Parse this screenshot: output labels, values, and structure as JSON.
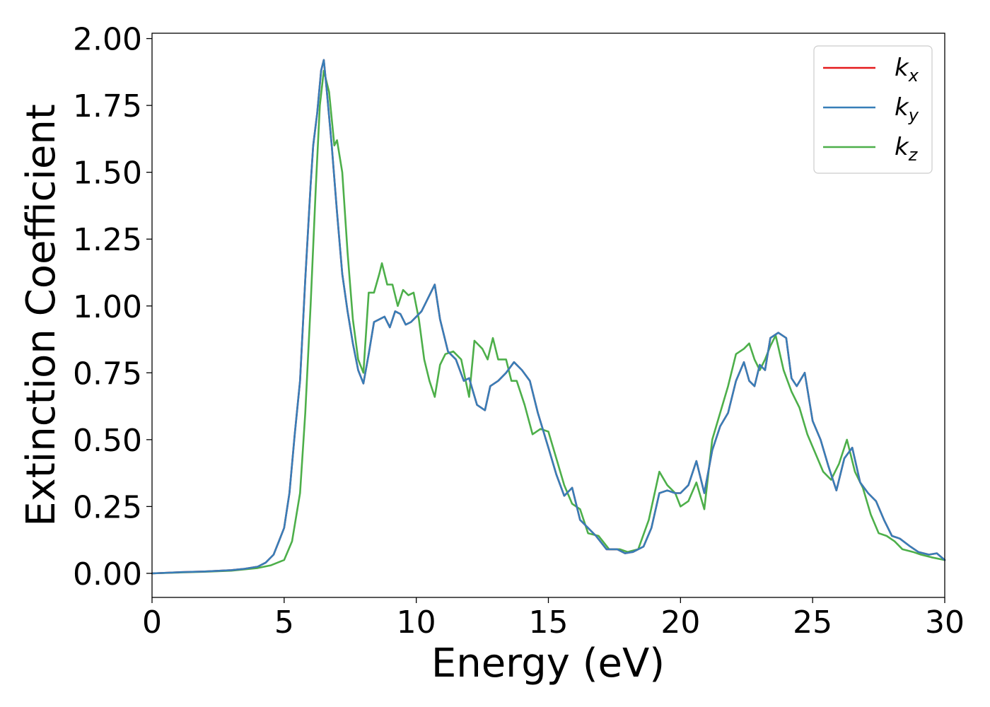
{
  "chart_data": {
    "type": "line",
    "title": "",
    "xlabel": "Energy (eV)",
    "ylabel": "Extinction Coefficient",
    "xlim": [
      0,
      30
    ],
    "ylim": [
      -0.09,
      2.02
    ],
    "xticks": [
      0,
      5,
      10,
      15,
      20,
      25,
      30
    ],
    "xtick_labels": [
      "0",
      "5",
      "10",
      "15",
      "20",
      "25",
      "30"
    ],
    "yticks": [
      0.0,
      0.25,
      0.5,
      0.75,
      1.0,
      1.25,
      1.5,
      1.75,
      2.0
    ],
    "ytick_labels": [
      "0.00",
      "0.25",
      "0.50",
      "0.75",
      "1.00",
      "1.25",
      "1.50",
      "1.75",
      "2.00"
    ],
    "grid": false,
    "legend_position": "top-right",
    "series": [
      {
        "name": "k",
        "subscript": "x",
        "color": "#e41a1c",
        "x": [
          0,
          1,
          2,
          3,
          3.5,
          4,
          4.3,
          4.6,
          4.8,
          5.0,
          5.2,
          5.4,
          5.6,
          5.8,
          6.0,
          6.1,
          6.25,
          6.4,
          6.5,
          6.6,
          6.8,
          7.0,
          7.2,
          7.4,
          7.6,
          7.8,
          8.0,
          8.2,
          8.4,
          8.6,
          8.8,
          9.0,
          9.2,
          9.4,
          9.6,
          9.8,
          10.0,
          10.2,
          10.4,
          10.7,
          10.9,
          11.2,
          11.5,
          11.8,
          12.0,
          12.3,
          12.6,
          12.8,
          13.1,
          13.4,
          13.7,
          14.0,
          14.3,
          14.6,
          15.0,
          15.3,
          15.6,
          15.9,
          16.2,
          16.5,
          16.8,
          17.2,
          17.6,
          17.9,
          18.2,
          18.6,
          18.9,
          19.2,
          19.5,
          19.8,
          20.0,
          20.3,
          20.6,
          20.9,
          21.2,
          21.5,
          21.8,
          22.1,
          22.4,
          22.6,
          22.8,
          23.0,
          23.2,
          23.4,
          23.7,
          24.0,
          24.2,
          24.4,
          24.7,
          25.0,
          25.3,
          25.6,
          25.9,
          26.2,
          26.5,
          26.8,
          27.1,
          27.4,
          27.7,
          28.0,
          28.3,
          28.7,
          29.0,
          29.4,
          29.7,
          30.0
        ],
        "y": [
          0.0,
          0.004,
          0.007,
          0.012,
          0.017,
          0.025,
          0.04,
          0.07,
          0.12,
          0.17,
          0.3,
          0.52,
          0.72,
          1.1,
          1.45,
          1.6,
          1.72,
          1.88,
          1.92,
          1.82,
          1.6,
          1.35,
          1.12,
          0.98,
          0.86,
          0.76,
          0.71,
          0.82,
          0.94,
          0.95,
          0.96,
          0.92,
          0.98,
          0.97,
          0.93,
          0.94,
          0.96,
          0.98,
          1.02,
          1.08,
          0.95,
          0.83,
          0.8,
          0.72,
          0.73,
          0.63,
          0.61,
          0.7,
          0.72,
          0.75,
          0.79,
          0.76,
          0.72,
          0.6,
          0.47,
          0.37,
          0.29,
          0.32,
          0.2,
          0.17,
          0.14,
          0.09,
          0.09,
          0.075,
          0.08,
          0.1,
          0.17,
          0.3,
          0.31,
          0.3,
          0.3,
          0.33,
          0.42,
          0.3,
          0.46,
          0.55,
          0.6,
          0.72,
          0.79,
          0.72,
          0.7,
          0.78,
          0.76,
          0.88,
          0.9,
          0.88,
          0.73,
          0.7,
          0.75,
          0.57,
          0.5,
          0.4,
          0.31,
          0.43,
          0.47,
          0.34,
          0.3,
          0.27,
          0.2,
          0.14,
          0.13,
          0.1,
          0.08,
          0.07,
          0.075,
          0.05
        ]
      },
      {
        "name": "k",
        "subscript": "y",
        "color": "#377eb8",
        "x": [
          0,
          1,
          2,
          3,
          3.5,
          4,
          4.3,
          4.6,
          4.8,
          5.0,
          5.2,
          5.4,
          5.6,
          5.8,
          6.0,
          6.1,
          6.25,
          6.4,
          6.5,
          6.6,
          6.8,
          7.0,
          7.2,
          7.4,
          7.6,
          7.8,
          8.0,
          8.2,
          8.4,
          8.6,
          8.8,
          9.0,
          9.2,
          9.4,
          9.6,
          9.8,
          10.0,
          10.2,
          10.4,
          10.7,
          10.9,
          11.2,
          11.5,
          11.8,
          12.0,
          12.3,
          12.6,
          12.8,
          13.1,
          13.4,
          13.7,
          14.0,
          14.3,
          14.6,
          15.0,
          15.3,
          15.6,
          15.9,
          16.2,
          16.5,
          16.8,
          17.2,
          17.6,
          17.9,
          18.2,
          18.6,
          18.9,
          19.2,
          19.5,
          19.8,
          20.0,
          20.3,
          20.6,
          20.9,
          21.2,
          21.5,
          21.8,
          22.1,
          22.4,
          22.6,
          22.8,
          23.0,
          23.2,
          23.4,
          23.7,
          24.0,
          24.2,
          24.4,
          24.7,
          25.0,
          25.3,
          25.6,
          25.9,
          26.2,
          26.5,
          26.8,
          27.1,
          27.4,
          27.7,
          28.0,
          28.3,
          28.7,
          29.0,
          29.4,
          29.7,
          30.0
        ],
        "y": [
          0.0,
          0.004,
          0.007,
          0.012,
          0.017,
          0.025,
          0.04,
          0.07,
          0.12,
          0.17,
          0.3,
          0.52,
          0.72,
          1.1,
          1.45,
          1.6,
          1.72,
          1.88,
          1.92,
          1.82,
          1.6,
          1.35,
          1.12,
          0.98,
          0.86,
          0.76,
          0.71,
          0.82,
          0.94,
          0.95,
          0.96,
          0.92,
          0.98,
          0.97,
          0.93,
          0.94,
          0.96,
          0.98,
          1.02,
          1.08,
          0.95,
          0.83,
          0.8,
          0.72,
          0.73,
          0.63,
          0.61,
          0.7,
          0.72,
          0.75,
          0.79,
          0.76,
          0.72,
          0.6,
          0.47,
          0.37,
          0.29,
          0.32,
          0.2,
          0.17,
          0.14,
          0.09,
          0.09,
          0.075,
          0.08,
          0.1,
          0.17,
          0.3,
          0.31,
          0.3,
          0.3,
          0.33,
          0.42,
          0.3,
          0.46,
          0.55,
          0.6,
          0.72,
          0.79,
          0.72,
          0.7,
          0.78,
          0.76,
          0.88,
          0.9,
          0.88,
          0.73,
          0.7,
          0.75,
          0.57,
          0.5,
          0.4,
          0.31,
          0.43,
          0.47,
          0.34,
          0.3,
          0.27,
          0.2,
          0.14,
          0.13,
          0.1,
          0.08,
          0.07,
          0.075,
          0.05
        ]
      },
      {
        "name": "k",
        "subscript": "z",
        "color": "#4daf4a",
        "x": [
          0,
          1,
          2,
          3,
          3.5,
          4,
          4.5,
          5.0,
          5.3,
          5.6,
          5.8,
          6.0,
          6.2,
          6.35,
          6.5,
          6.7,
          6.9,
          7.0,
          7.2,
          7.4,
          7.6,
          7.8,
          8.0,
          8.2,
          8.4,
          8.6,
          8.7,
          8.9,
          9.1,
          9.3,
          9.5,
          9.7,
          9.9,
          10.1,
          10.3,
          10.5,
          10.7,
          10.9,
          11.1,
          11.4,
          11.7,
          12.0,
          12.2,
          12.5,
          12.7,
          12.9,
          13.1,
          13.4,
          13.6,
          13.8,
          14.1,
          14.4,
          14.7,
          15.0,
          15.3,
          15.6,
          15.9,
          16.2,
          16.5,
          16.9,
          17.3,
          17.7,
          18.0,
          18.4,
          18.8,
          19.2,
          19.5,
          19.8,
          20.0,
          20.3,
          20.6,
          20.9,
          21.2,
          21.5,
          21.8,
          22.1,
          22.4,
          22.6,
          22.8,
          23.0,
          23.2,
          23.4,
          23.6,
          23.9,
          24.2,
          24.5,
          24.8,
          25.1,
          25.4,
          25.7,
          26.0,
          26.3,
          26.6,
          26.9,
          27.2,
          27.5,
          27.8,
          28.1,
          28.4,
          28.8,
          29.1,
          29.5,
          30.0
        ],
        "y": [
          0.0,
          0.003,
          0.006,
          0.01,
          0.015,
          0.02,
          0.03,
          0.05,
          0.12,
          0.3,
          0.6,
          1.0,
          1.45,
          1.75,
          1.88,
          1.8,
          1.6,
          1.62,
          1.5,
          1.2,
          0.95,
          0.8,
          0.75,
          1.05,
          1.05,
          1.12,
          1.16,
          1.08,
          1.08,
          1.0,
          1.06,
          1.04,
          1.05,
          0.95,
          0.8,
          0.72,
          0.66,
          0.78,
          0.82,
          0.83,
          0.8,
          0.66,
          0.87,
          0.84,
          0.8,
          0.88,
          0.8,
          0.8,
          0.72,
          0.72,
          0.63,
          0.52,
          0.54,
          0.53,
          0.43,
          0.33,
          0.26,
          0.24,
          0.15,
          0.14,
          0.09,
          0.09,
          0.08,
          0.09,
          0.2,
          0.38,
          0.33,
          0.3,
          0.25,
          0.27,
          0.34,
          0.24,
          0.5,
          0.6,
          0.7,
          0.82,
          0.84,
          0.86,
          0.8,
          0.76,
          0.8,
          0.85,
          0.89,
          0.76,
          0.68,
          0.62,
          0.52,
          0.45,
          0.38,
          0.35,
          0.41,
          0.5,
          0.38,
          0.32,
          0.22,
          0.15,
          0.14,
          0.12,
          0.09,
          0.08,
          0.07,
          0.06,
          0.05
        ]
      }
    ]
  }
}
